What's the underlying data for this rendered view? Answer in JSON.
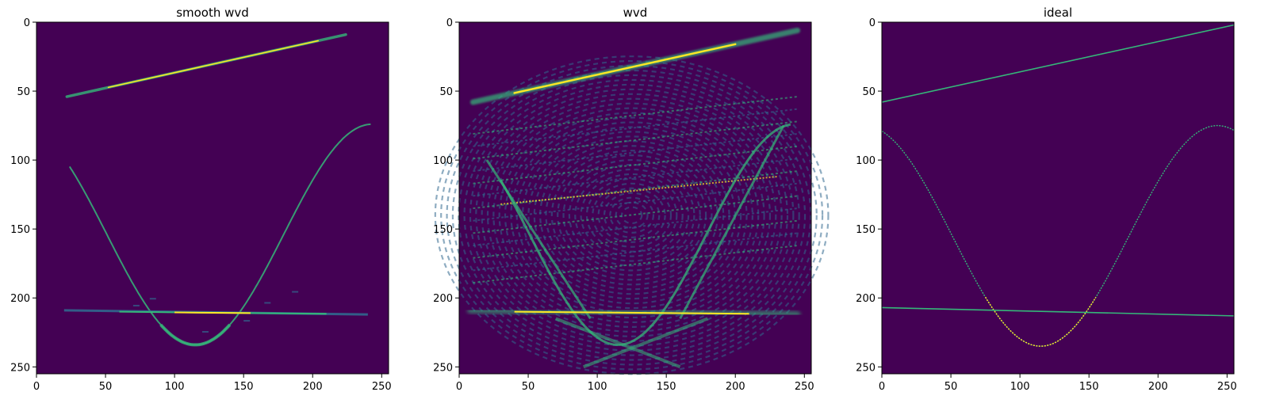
{
  "palette": {
    "background": "#440154",
    "low": "#31688e",
    "mid": "#35b779",
    "high": "#fde725",
    "frame": "#000000"
  },
  "chart_data": [
    {
      "type": "heatmap",
      "title": "smooth wvd",
      "xlim": [
        0,
        255
      ],
      "ylim": [
        255,
        0
      ],
      "xticks": [
        0,
        50,
        100,
        150,
        200,
        250
      ],
      "yticks": [
        0,
        50,
        100,
        150,
        200,
        250
      ],
      "xtick_labels": [
        "0",
        "50",
        "100",
        "150",
        "200",
        "250"
      ],
      "ytick_labels": [
        "0",
        "50",
        "100",
        "150",
        "200",
        "250"
      ],
      "colormap": "viridis",
      "features": {
        "chirp": {
          "x_start": 22,
          "x_end": 224,
          "y_start": 54,
          "y_end": 9
        },
        "sinusoid": {
          "x_start": 24,
          "x_end": 242,
          "center_y": 154,
          "amplitude": 80,
          "period": 256,
          "phase_x": 115
        },
        "tone": {
          "x_start": 20,
          "x_end": 240,
          "y_start": 209,
          "y_end": 212
        }
      }
    },
    {
      "type": "heatmap",
      "title": "wvd",
      "xlim": [
        0,
        255
      ],
      "ylim": [
        255,
        0
      ],
      "xticks": [
        0,
        50,
        100,
        150,
        200,
        250
      ],
      "yticks": [
        0,
        50,
        100,
        150,
        200,
        250
      ],
      "xtick_labels": [
        "0",
        "50",
        "100",
        "150",
        "200",
        "250"
      ],
      "ytick_labels": [
        "0",
        "50",
        "100",
        "150",
        "200",
        "250"
      ],
      "colormap": "viridis",
      "features": {
        "chirp": {
          "x_start": 10,
          "x_end": 245,
          "y_start": 58,
          "y_end": 6
        },
        "sinusoid": {
          "x_start": 30,
          "x_end": 240,
          "center_y": 154,
          "amplitude": 80,
          "period": 256,
          "phase_x": 115
        },
        "tone": {
          "x_start": 8,
          "x_end": 245,
          "y_start": 209,
          "y_end": 212
        }
      }
    },
    {
      "type": "heatmap",
      "title": "ideal",
      "xlim": [
        0,
        255
      ],
      "ylim": [
        255,
        0
      ],
      "xticks": [
        0,
        50,
        100,
        150,
        200,
        250
      ],
      "yticks": [
        0,
        50,
        100,
        150,
        200,
        250
      ],
      "xtick_labels": [
        "0",
        "50",
        "100",
        "150",
        "200",
        "250"
      ],
      "ytick_labels": [
        "0",
        "50",
        "100",
        "150",
        "200",
        "250"
      ],
      "colormap": "viridis",
      "features": {
        "chirp": {
          "x_start": 0,
          "x_end": 255,
          "y_start": 58,
          "y_end": 2
        },
        "sinusoid": {
          "x_start": 0,
          "x_end": 255,
          "center_y": 155,
          "amplitude": 80,
          "period": 256,
          "phase_x": 115
        },
        "tone": {
          "x_start": 0,
          "x_end": 255,
          "y_start": 207,
          "y_end": 213
        }
      }
    }
  ]
}
